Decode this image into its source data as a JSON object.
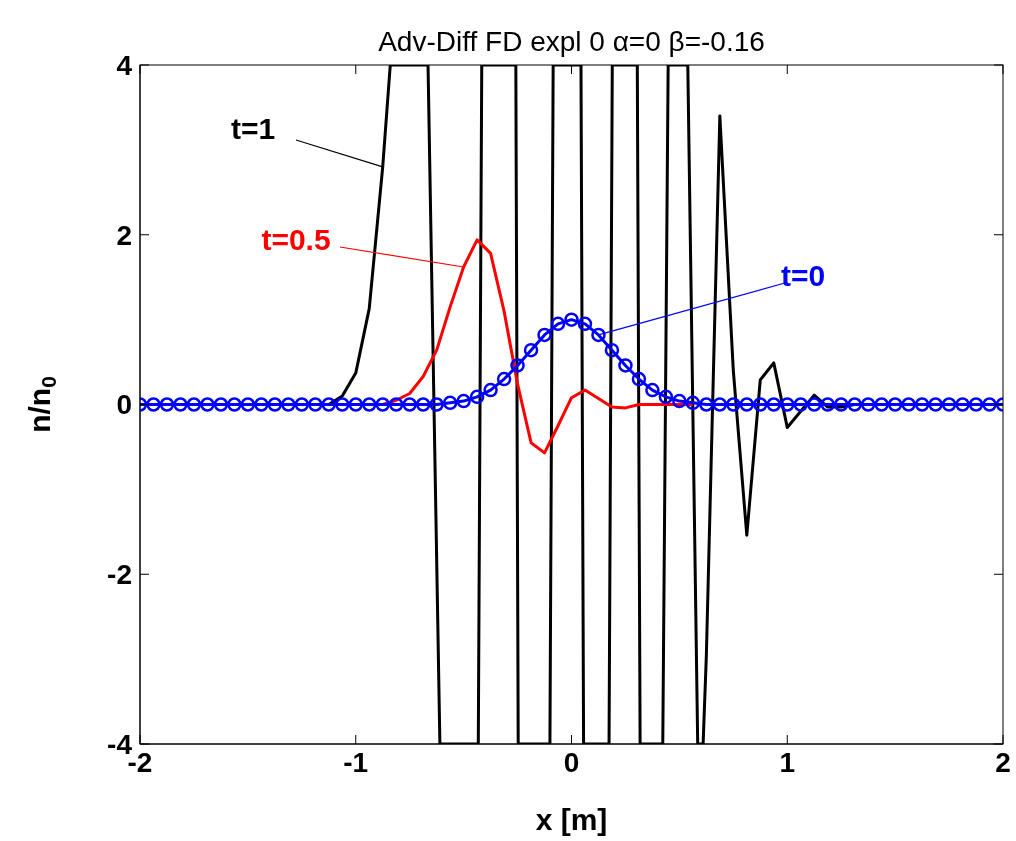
{
  "chart_data": {
    "type": "line",
    "title": "Adv-Diff FD expl 0 α=0 β=-0.16",
    "xlabel": "x [m]",
    "ylabel": "n/n$_{0}$",
    "x": [
      -2,
      -1.9375,
      -1.875,
      -1.8125,
      -1.75,
      -1.6875,
      -1.625,
      -1.5625,
      -1.5,
      -1.4375,
      -1.375,
      -1.3125,
      -1.25,
      -1.1875,
      -1.125,
      -1.0625,
      -1,
      -0.9375,
      -0.875,
      -0.8125,
      -0.75,
      -0.6875,
      -0.625,
      -0.5625,
      -0.5,
      -0.4375,
      -0.375,
      -0.3125,
      -0.25,
      -0.1875,
      -0.125,
      -0.0625,
      0,
      0.0625,
      0.125,
      0.1875,
      0.25,
      0.3125,
      0.375,
      0.4375,
      0.5,
      0.5625,
      0.625,
      0.6875,
      0.75,
      0.8125,
      0.875,
      0.9375,
      1,
      1.0625,
      1.125,
      1.1875,
      1.25,
      1.3125,
      1.375,
      1.4375,
      1.5,
      1.5625,
      1.625,
      1.6875,
      1.75,
      1.8125,
      1.875,
      1.9375,
      2
    ],
    "series": [
      {
        "name": "t=1",
        "color": "#000000",
        "marker": "none",
        "x": [
          -2,
          -1.5,
          -1.125,
          -1.0625,
          -1,
          -0.9375,
          -0.875,
          -0.84,
          -0.665,
          -0.61,
          -0.432,
          -0.416,
          -0.258,
          -0.247,
          -0.1,
          -0.085,
          0.044,
          0.056,
          0.174,
          0.189,
          0.305,
          0.318,
          0.423,
          0.448,
          0.539,
          0.585,
          0.61,
          0.625,
          0.6875,
          0.75,
          0.8125,
          0.875,
          0.9375,
          1,
          1.0625,
          1.125,
          1.1875,
          1.25,
          1.3125,
          2
        ],
        "values": [
          0,
          0,
          0,
          0.1,
          0.37,
          1.13,
          2.8,
          4,
          4,
          -4,
          -4,
          4,
          4,
          -4,
          -4,
          4,
          4,
          -4,
          -4,
          4,
          4,
          -4,
          -4,
          4,
          4,
          -4,
          -4,
          -2.96,
          3.4,
          0.4,
          -1.54,
          0.29,
          0.49,
          -0.27,
          -0.08,
          0.11,
          -0.03,
          -0.03,
          0,
          0
        ]
      },
      {
        "name": "t=0.5",
        "color": "#ff0000",
        "marker": "none",
        "values": [
          null,
          null,
          null,
          null,
          null,
          null,
          null,
          null,
          null,
          null,
          null,
          null,
          null,
          null,
          null,
          null,
          null,
          null,
          0,
          0.05,
          0.13,
          0.33,
          0.64,
          1.15,
          1.62,
          1.94,
          1.78,
          1.1,
          0.24,
          -0.45,
          -0.57,
          -0.25,
          0.08,
          0.17,
          0.07,
          -0.03,
          -0.04,
          0,
          0,
          0,
          0,
          0,
          null,
          null,
          null,
          null,
          null,
          null,
          null,
          null,
          null,
          null,
          null,
          null,
          null,
          null,
          null,
          null,
          null,
          null,
          null,
          null,
          null,
          null,
          null
        ]
      },
      {
        "name": "t=0",
        "color": "#0000ff",
        "marker": "circle",
        "values": [
          0,
          0,
          0,
          0,
          0,
          0,
          0,
          0,
          0,
          0,
          0,
          0,
          0,
          0,
          0,
          0,
          0,
          0,
          0,
          0,
          0,
          0,
          0,
          0.02,
          0.04,
          0.09,
          0.17,
          0.3,
          0.46,
          0.64,
          0.82,
          0.95,
          1,
          0.95,
          0.82,
          0.64,
          0.46,
          0.3,
          0.17,
          0.09,
          0.04,
          0.02,
          0,
          0,
          0,
          0,
          0,
          0,
          0,
          0,
          0,
          0,
          0,
          0,
          0,
          0,
          0,
          0,
          0,
          0,
          0,
          0,
          0,
          0,
          0
        ]
      }
    ],
    "xlim": [
      -2,
      2
    ],
    "xticks": [
      -2,
      -1,
      0,
      1,
      2
    ],
    "ylim": [
      -4,
      4
    ],
    "yticks": [
      -4,
      -2,
      0,
      2,
      4
    ],
    "grid": false
  }
}
